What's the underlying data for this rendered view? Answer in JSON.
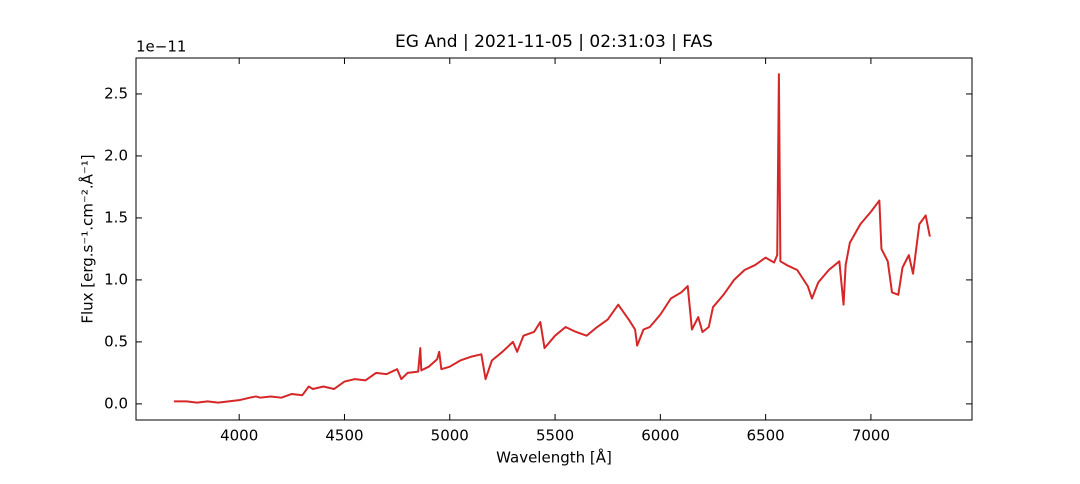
{
  "chart_data": {
    "type": "line",
    "title": "EG And | 2021-11-05 | 02:31:03 | FAS",
    "xlabel": "Wavelength [Å]",
    "ylabel": "Flux [erg.s⁻¹.cm⁻².Å⁻¹]",
    "y_offset_label": "1e−11",
    "xlim": [
      3510,
      7480
    ],
    "ylim": [
      -0.13,
      2.79
    ],
    "xticks": [
      4000,
      4500,
      5000,
      5500,
      6000,
      6500,
      7000
    ],
    "yticks": [
      {
        "value": 0,
        "label": "0.0"
      },
      0.5,
      {
        "value": 1,
        "label": "1.0"
      },
      1.5,
      {
        "value": 2,
        "label": "2.0"
      },
      2.5
    ],
    "x": [
      3690,
      3750,
      3800,
      3850,
      3900,
      3950,
      4000,
      4050,
      4080,
      4100,
      4150,
      4200,
      4250,
      4300,
      4330,
      4350,
      4400,
      4450,
      4500,
      4550,
      4600,
      4650,
      4700,
      4750,
      4770,
      4800,
      4850,
      4860,
      4865,
      4900,
      4940,
      4950,
      4960,
      5000,
      5050,
      5100,
      5150,
      5170,
      5200,
      5250,
      5300,
      5320,
      5350,
      5400,
      5430,
      5450,
      5500,
      5550,
      5600,
      5650,
      5700,
      5750,
      5800,
      5850,
      5880,
      5890,
      5920,
      5950,
      6000,
      6050,
      6100,
      6130,
      6150,
      6180,
      6200,
      6230,
      6250,
      6300,
      6350,
      6400,
      6450,
      6500,
      6540,
      6555,
      6563,
      6570,
      6600,
      6650,
      6700,
      6720,
      6750,
      6800,
      6850,
      6870,
      6880,
      6900,
      6950,
      7000,
      7040,
      7050,
      7080,
      7100,
      7130,
      7150,
      7180,
      7200,
      7230,
      7260,
      7280
    ],
    "series": [
      {
        "name": "EG And",
        "color": "#d62728",
        "values": [
          0.02,
          0.02,
          0.01,
          0.02,
          0.01,
          0.02,
          0.03,
          0.05,
          0.06,
          0.05,
          0.06,
          0.05,
          0.08,
          0.07,
          0.14,
          0.12,
          0.14,
          0.12,
          0.18,
          0.2,
          0.19,
          0.25,
          0.24,
          0.28,
          0.2,
          0.25,
          0.26,
          0.45,
          0.27,
          0.3,
          0.36,
          0.42,
          0.28,
          0.3,
          0.35,
          0.38,
          0.4,
          0.2,
          0.35,
          0.42,
          0.5,
          0.42,
          0.55,
          0.58,
          0.66,
          0.45,
          0.55,
          0.62,
          0.58,
          0.55,
          0.62,
          0.68,
          0.8,
          0.68,
          0.6,
          0.47,
          0.6,
          0.62,
          0.72,
          0.85,
          0.9,
          0.95,
          0.6,
          0.7,
          0.58,
          0.62,
          0.78,
          0.88,
          1.0,
          1.08,
          1.12,
          1.18,
          1.14,
          1.2,
          2.66,
          1.15,
          1.12,
          1.08,
          0.95,
          0.85,
          0.98,
          1.08,
          1.15,
          0.8,
          1.12,
          1.3,
          1.45,
          1.55,
          1.64,
          1.25,
          1.15,
          0.9,
          0.88,
          1.1,
          1.2,
          1.05,
          1.45,
          1.52,
          1.35
        ]
      }
    ]
  }
}
